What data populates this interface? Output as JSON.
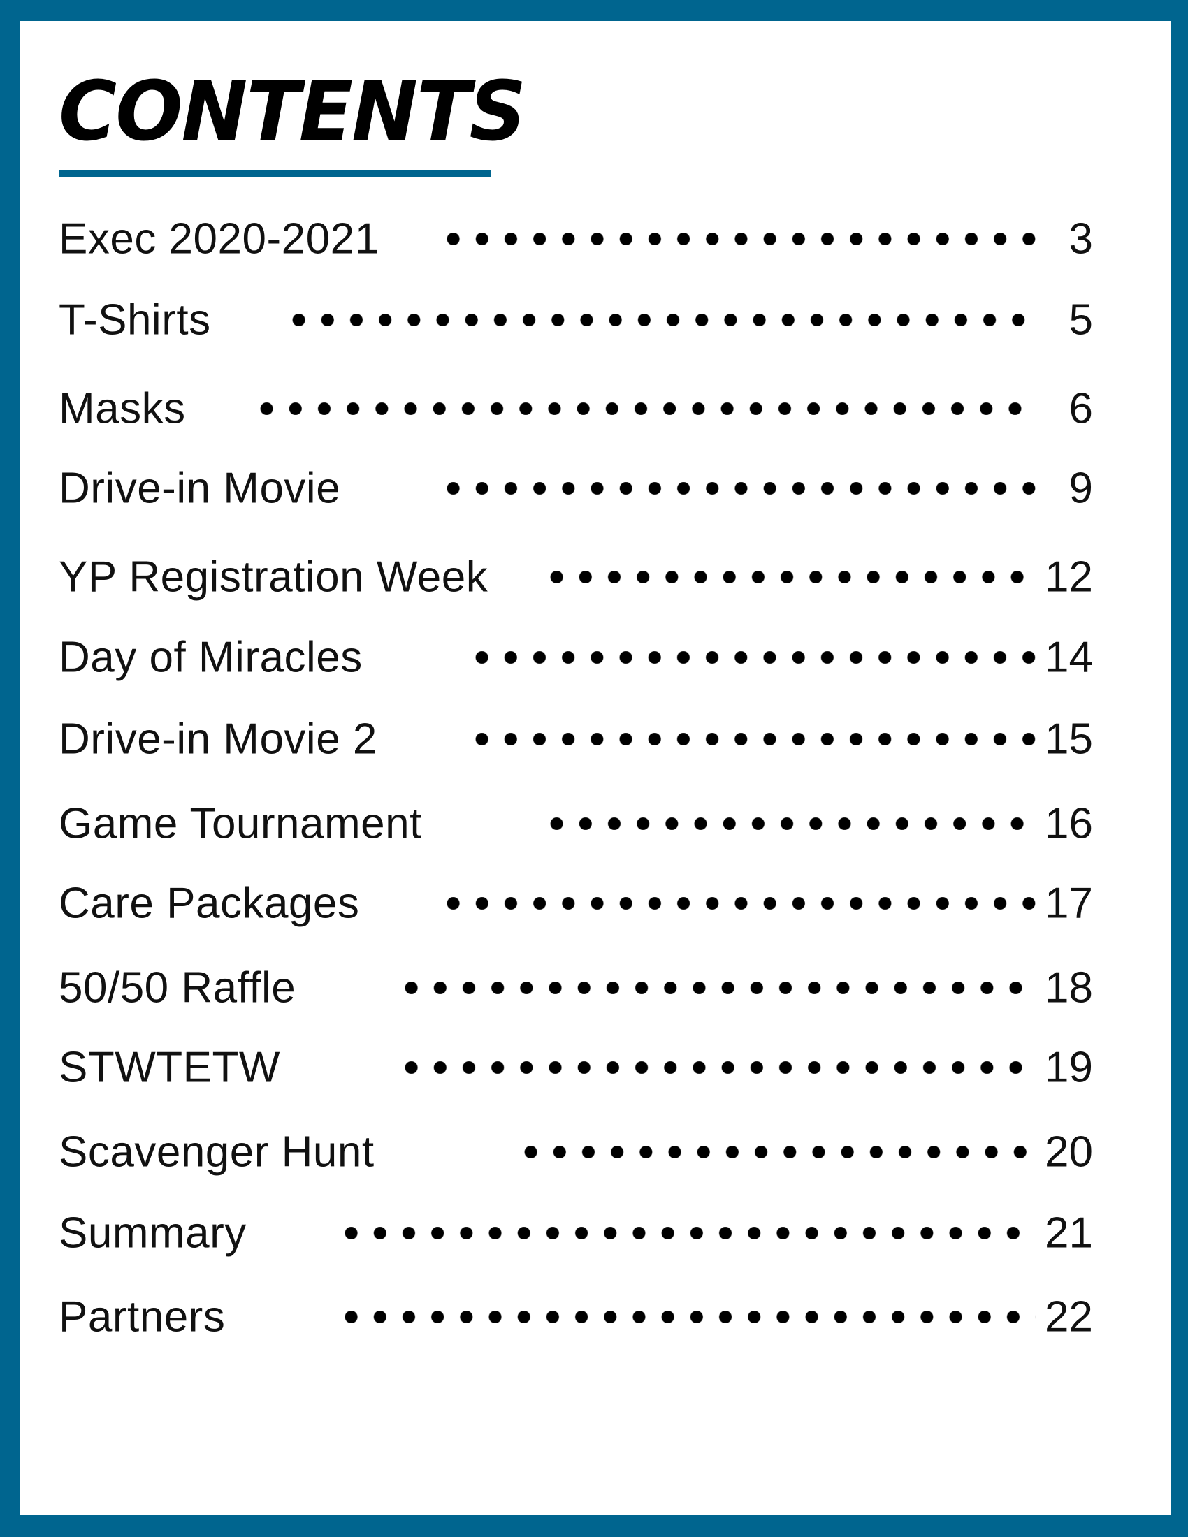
{
  "document": {
    "title": "CONTENTS",
    "colors": {
      "frame": "#00658f",
      "rule": "#00658f",
      "text": "#111111",
      "background": "#ffffff"
    },
    "entries": [
      {
        "label": "Exec 2020-2021",
        "page": "3"
      },
      {
        "label": "T-Shirts",
        "page": "5"
      },
      {
        "label": "Masks",
        "page": "6"
      },
      {
        "label": "Drive-in Movie",
        "page": "9"
      },
      {
        "label": "YP Registration Week",
        "page": "12"
      },
      {
        "label": "Day of Miracles",
        "page": "14"
      },
      {
        "label": "Drive-in Movie 2",
        "page": "15"
      },
      {
        "label": "Game Tournament",
        "page": "16"
      },
      {
        "label": "Care Packages",
        "page": "17"
      },
      {
        "label": "50/50 Raffle",
        "page": "18"
      },
      {
        "label": "STWTETW",
        "page": "19"
      },
      {
        "label": "Scavenger Hunt",
        "page": "20"
      },
      {
        "label": "Summary",
        "page": "21"
      },
      {
        "label": "Partners",
        "page": "22"
      }
    ]
  }
}
